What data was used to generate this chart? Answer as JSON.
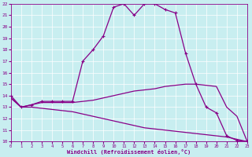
{
  "xlabel": "Windchill (Refroidissement éolien,°C)",
  "xlim": [
    0,
    23
  ],
  "ylim": [
    10,
    22
  ],
  "xticks": [
    0,
    1,
    2,
    3,
    4,
    5,
    6,
    7,
    8,
    9,
    10,
    11,
    12,
    13,
    14,
    15,
    16,
    17,
    18,
    19,
    20,
    21,
    22,
    23
  ],
  "yticks": [
    10,
    11,
    12,
    13,
    14,
    15,
    16,
    17,
    18,
    19,
    20,
    21,
    22
  ],
  "bg_color": "#c8eef0",
  "line_color": "#880088",
  "line1_x": [
    0,
    1,
    2,
    3,
    4,
    5,
    6,
    7,
    8,
    9,
    10,
    11,
    12,
    13,
    14,
    15,
    16,
    17,
    18,
    19,
    20,
    21,
    22,
    23
  ],
  "line1_y": [
    14.0,
    13.0,
    13.2,
    13.5,
    13.5,
    13.5,
    13.5,
    17.0,
    18.0,
    19.2,
    21.7,
    22.0,
    21.0,
    22.0,
    22.0,
    21.5,
    21.2,
    17.7,
    15.0,
    13.0,
    12.5,
    10.5,
    10.1,
    10.0
  ],
  "line2_x": [
    0,
    1,
    2,
    3,
    4,
    5,
    6,
    7,
    8,
    9,
    10,
    11,
    12,
    13,
    14,
    15,
    16,
    17,
    18,
    19,
    20,
    21,
    22,
    23
  ],
  "line2_y": [
    13.8,
    13.0,
    13.2,
    13.4,
    13.4,
    13.4,
    13.4,
    13.5,
    13.6,
    13.8,
    14.0,
    14.2,
    14.4,
    14.5,
    14.6,
    14.8,
    14.9,
    15.0,
    15.0,
    14.9,
    14.8,
    13.0,
    12.2,
    10.0
  ],
  "line3_x": [
    0,
    1,
    2,
    3,
    4,
    5,
    6,
    7,
    8,
    9,
    10,
    11,
    12,
    13,
    14,
    15,
    16,
    17,
    18,
    19,
    20,
    21,
    22,
    23
  ],
  "line3_y": [
    13.8,
    13.0,
    13.0,
    12.9,
    12.8,
    12.7,
    12.6,
    12.4,
    12.2,
    12.0,
    11.8,
    11.6,
    11.4,
    11.2,
    11.1,
    11.0,
    10.9,
    10.8,
    10.7,
    10.6,
    10.5,
    10.4,
    10.2,
    10.0
  ]
}
